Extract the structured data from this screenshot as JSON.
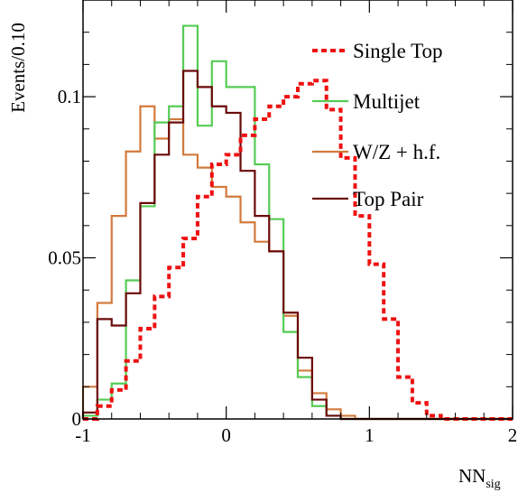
{
  "chart_data": {
    "type": "histogram",
    "xlabel_main": "NN",
    "xlabel_sub": "sig",
    "ylabel": "Events/0.10",
    "xlim": [
      -1,
      2
    ],
    "ylim": [
      0,
      0.13
    ],
    "xticks": [
      "-1",
      "0",
      "1",
      "2"
    ],
    "yticks": [
      "0",
      "0.05",
      "0.1"
    ],
    "ytick_values": [
      0,
      0.05,
      0.1
    ],
    "xtick_values": [
      -1,
      0,
      1,
      2
    ],
    "bin_edges": [
      -1.0,
      -0.9,
      -0.8,
      -0.7,
      -0.6,
      -0.5,
      -0.4,
      -0.3,
      -0.2,
      -0.1,
      0.0,
      0.1,
      0.2,
      0.3,
      0.4,
      0.5,
      0.6,
      0.7,
      0.8,
      0.9,
      1.0,
      1.1,
      1.2,
      1.3,
      1.4,
      1.5,
      1.6,
      1.7,
      1.8,
      1.9,
      2.0
    ],
    "series": [
      {
        "name": "W/Z + h.f.",
        "color": "#d27a3c",
        "style": "solid",
        "values": [
          0.01,
          0.036,
          0.063,
          0.083,
          0.097,
          0.087,
          0.093,
          0.082,
          0.078,
          0.072,
          0.069,
          0.061,
          0.055,
          0.052,
          0.032,
          0.015,
          0.008,
          0.003,
          0.001,
          0.0,
          0.0,
          0.0,
          0.0,
          0.0,
          0.0,
          0.0,
          0.0,
          0.0,
          0.0,
          0.0
        ]
      },
      {
        "name": "Multijet",
        "color": "#55cc55",
        "style": "solid",
        "values": [
          0.001,
          0.006,
          0.011,
          0.043,
          0.066,
          0.092,
          0.097,
          0.122,
          0.091,
          0.111,
          0.103,
          0.103,
          0.079,
          0.062,
          0.027,
          0.013,
          0.004,
          0.001,
          0.0,
          0.0,
          0.0,
          0.0,
          0.0,
          0.0,
          0.0,
          0.0,
          0.0,
          0.0,
          0.0,
          0.0
        ]
      },
      {
        "name": "Top Pair",
        "color": "#6b0a0a",
        "style": "solid",
        "values": [
          0.002,
          0.031,
          0.029,
          0.039,
          0.067,
          0.082,
          0.092,
          0.108,
          0.103,
          0.097,
          0.095,
          0.077,
          0.063,
          0.052,
          0.033,
          0.019,
          0.006,
          0.001,
          0.0,
          0.0,
          0.0,
          0.0,
          0.0,
          0.0,
          0.0,
          0.0,
          0.0,
          0.0,
          0.0,
          0.0
        ]
      },
      {
        "name": "Single Top",
        "color": "#ee1111",
        "style": "dotted",
        "values": [
          0.0,
          0.004,
          0.009,
          0.018,
          0.028,
          0.038,
          0.047,
          0.056,
          0.069,
          0.079,
          0.082,
          0.088,
          0.093,
          0.097,
          0.1,
          0.104,
          0.105,
          0.096,
          0.081,
          0.063,
          0.048,
          0.031,
          0.013,
          0.005,
          0.001,
          0.0,
          0.0,
          0.0,
          0.0,
          0.0
        ]
      }
    ],
    "legend_order": [
      "Single Top",
      "Multijet",
      "W/Z + h.f.",
      "Top Pair"
    ],
    "legend_position": "top-right",
    "grid": false
  }
}
